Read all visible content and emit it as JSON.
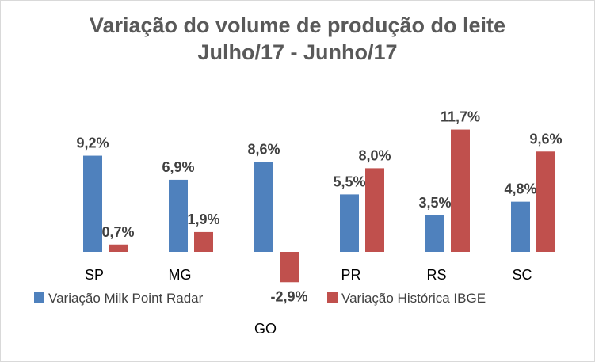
{
  "chart_data": {
    "type": "bar",
    "title_line1": "Variação do volume de produção do leite",
    "title_line2": "Julho/17 - Junho/17",
    "categories": [
      "SP",
      "MG",
      "GO",
      "PR",
      "RS",
      "SC"
    ],
    "series": [
      {
        "name": "Variação Milk Point Radar",
        "color": "#4f81bd",
        "values": [
          9.2,
          6.9,
          8.6,
          5.5,
          3.5,
          4.8
        ],
        "labels": [
          "9,2%",
          "6,9%",
          "8,6%",
          "5,5%",
          "3,5%",
          "4,8%"
        ]
      },
      {
        "name": "Variação Histórica IBGE",
        "color": "#c0504d",
        "values": [
          0.7,
          1.9,
          -2.9,
          8.0,
          11.7,
          9.6
        ],
        "labels": [
          "0,7%",
          "1,9%",
          "-2,9%",
          "8,0%",
          "11,7%",
          "9,6%"
        ]
      }
    ],
    "ylim": [
      -3,
      12
    ],
    "grid": false,
    "legend_position": "bottom"
  }
}
